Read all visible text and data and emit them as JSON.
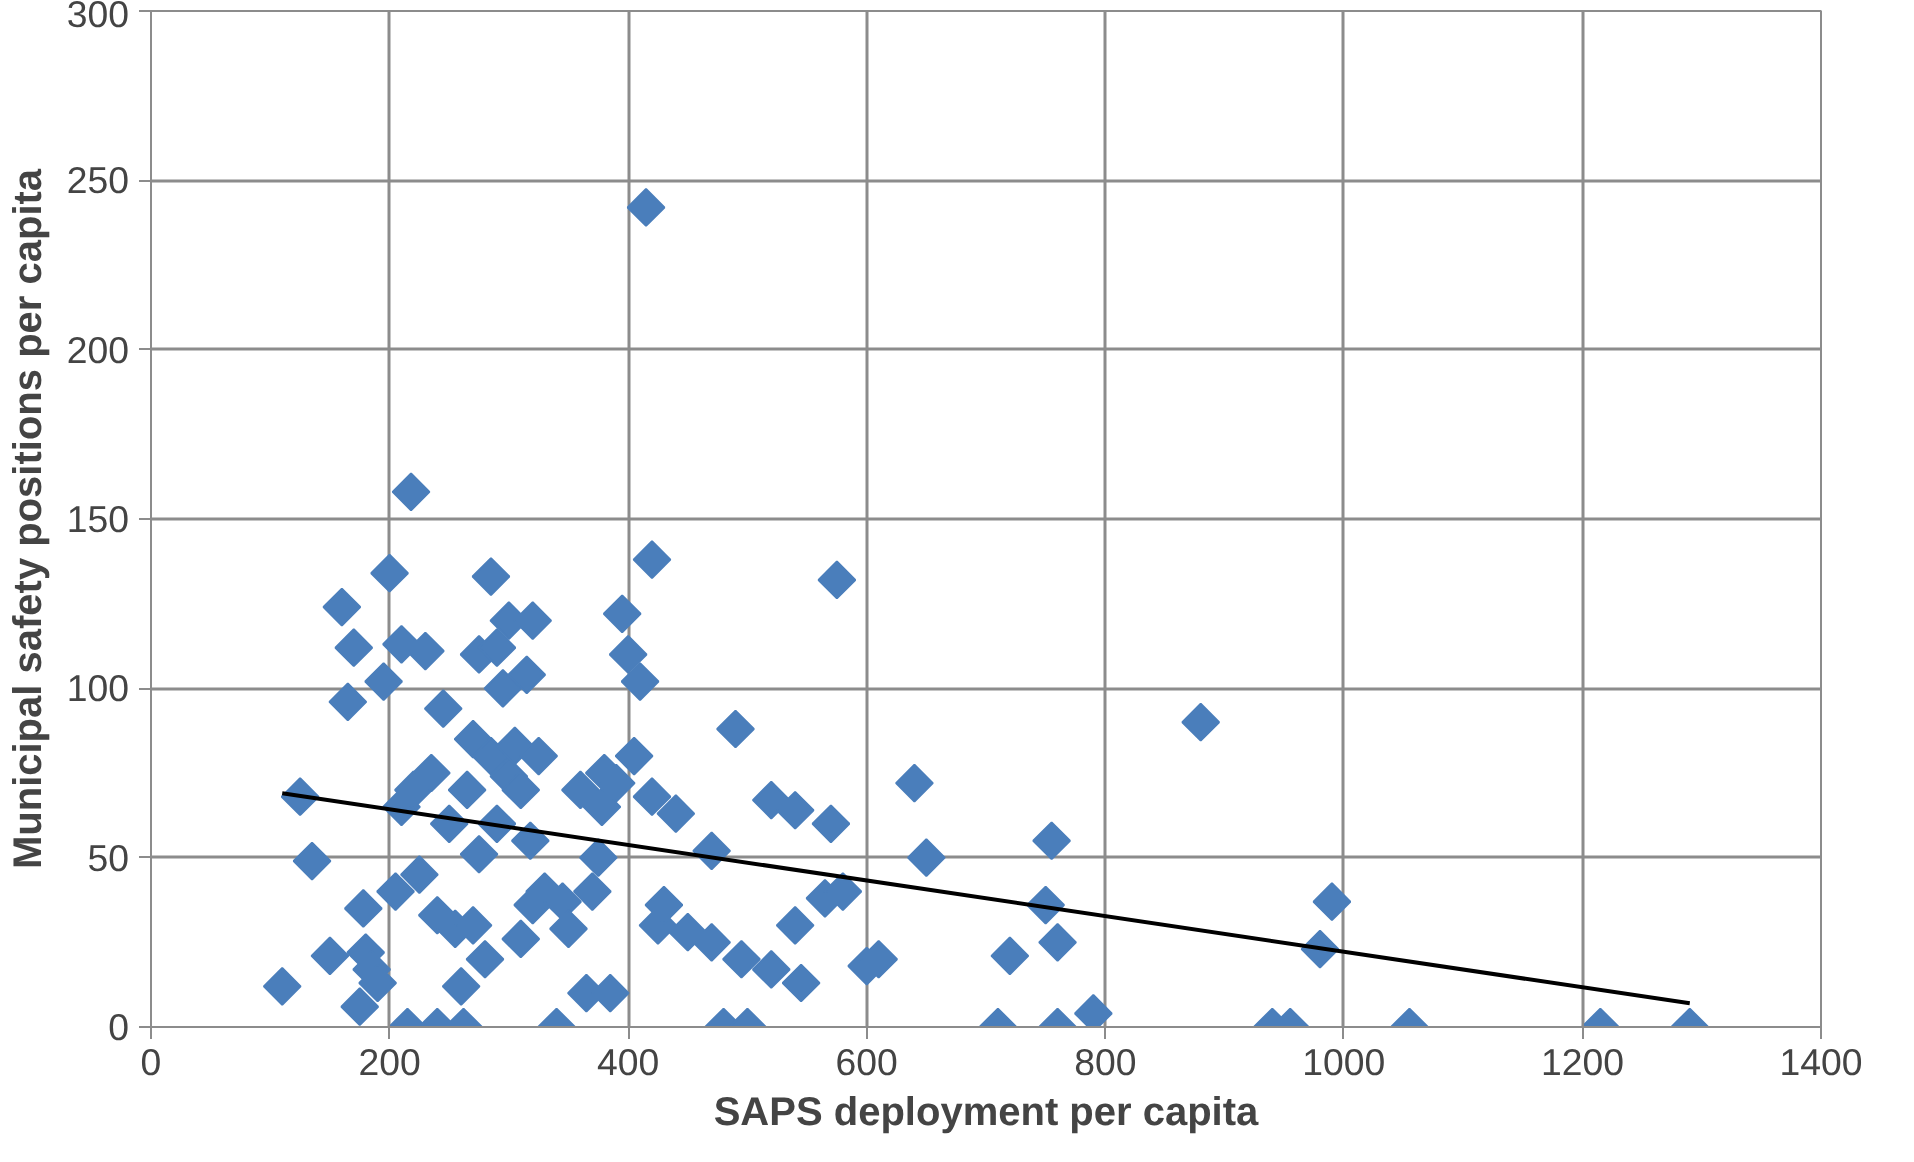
{
  "chart_data": {
    "type": "scatter",
    "xlabel": "SAPS deployment per capita",
    "ylabel": "Municipal safety positions per capita",
    "xlim": [
      0,
      1400
    ],
    "ylim": [
      0,
      300
    ],
    "xticks": [
      0,
      200,
      400,
      600,
      800,
      1000,
      1200,
      1400
    ],
    "yticks": [
      0,
      50,
      100,
      150,
      200,
      250,
      300
    ],
    "grid": true,
    "marker": "diamond",
    "series": [
      {
        "color": "#4a7ebb",
        "x": [
          110,
          125,
          135,
          150,
          160,
          165,
          170,
          175,
          178,
          180,
          185,
          190,
          195,
          200,
          205,
          210,
          210,
          215,
          218,
          220,
          225,
          230,
          235,
          240,
          240,
          245,
          250,
          255,
          260,
          262,
          265,
          270,
          270,
          275,
          275,
          280,
          285,
          285,
          290,
          290,
          295,
          300,
          300,
          305,
          310,
          310,
          315,
          318,
          320,
          320,
          325,
          330,
          340,
          345,
          350,
          360,
          365,
          370,
          375,
          378,
          380,
          385,
          390,
          395,
          400,
          405,
          410,
          415,
          420,
          420,
          425,
          430,
          440,
          450,
          470,
          470,
          480,
          490,
          495,
          500,
          520,
          520,
          540,
          540,
          545,
          565,
          570,
          575,
          580,
          600,
          610,
          640,
          650,
          710,
          720,
          750,
          755,
          760,
          760,
          790,
          880,
          940,
          955,
          980,
          990,
          1055,
          1215,
          1290
        ],
        "values": [
          12,
          68,
          49,
          21,
          124,
          96,
          112,
          6,
          35,
          22,
          17,
          13,
          102,
          134,
          40,
          65,
          113,
          0,
          158,
          70,
          45,
          111,
          75,
          0,
          33,
          94,
          60,
          29,
          12,
          0,
          70,
          85,
          30,
          51,
          110,
          20,
          133,
          80,
          60,
          112,
          100,
          120,
          74,
          83,
          70,
          26,
          104,
          55,
          120,
          36,
          80,
          40,
          0,
          37,
          29,
          70,
          10,
          40,
          50,
          65,
          75,
          10,
          72,
          122,
          110,
          80,
          102,
          242,
          138,
          68,
          30,
          36,
          63,
          28,
          52,
          25,
          0,
          88,
          20,
          0,
          17,
          67,
          30,
          64,
          13,
          38,
          60,
          132,
          40,
          18,
          20,
          72,
          50,
          0,
          21,
          36,
          55,
          0,
          25,
          4,
          90,
          0,
          0,
          23,
          37,
          0,
          0,
          0
        ]
      },
      {
        "type": "line",
        "color": "#000000",
        "marker": "none",
        "x": [
          110,
          1290
        ],
        "values": [
          69,
          7
        ]
      }
    ]
  }
}
